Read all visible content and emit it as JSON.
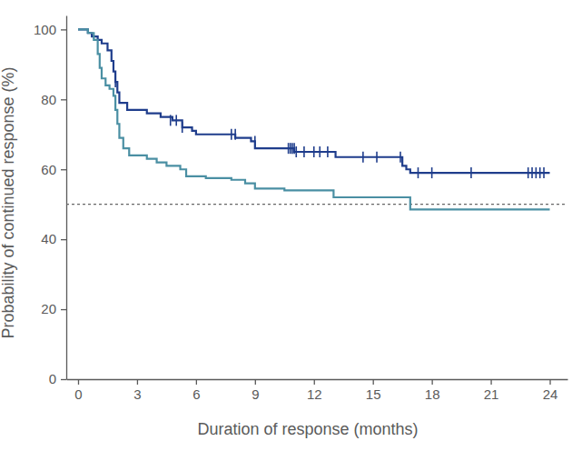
{
  "chart_data": {
    "type": "line",
    "line_style": "step",
    "x_label": "Duration of response (months)",
    "y_label": "Probability of continued response (%)",
    "xlim": [
      -0.6,
      24.9
    ],
    "ylim": [
      0,
      104
    ],
    "xticks": [
      0,
      3,
      6,
      9,
      12,
      15,
      18,
      21,
      24
    ],
    "yticks": [
      0,
      20,
      40,
      60,
      80,
      100
    ],
    "grid": false,
    "reference_line": 50,
    "series": [
      {
        "color": "#1f3d8c",
        "x": [
          0,
          0.5,
          0.7,
          1.0,
          1.2,
          1.5,
          1.7,
          1.8,
          1.9,
          2.0,
          2.1,
          2.5,
          3.5,
          4.2,
          4.8,
          5.3,
          5.8,
          6.0,
          8.0,
          8.8,
          9.0,
          11.0,
          13.1,
          16.5,
          16.7,
          16.9,
          24.0
        ],
        "values": [
          100,
          99,
          98,
          97,
          96,
          94,
          91,
          88,
          85,
          82,
          79,
          77,
          76,
          75,
          74,
          72,
          71,
          70,
          69,
          68,
          66,
          65,
          63.5,
          61,
          60,
          59,
          59
        ],
        "censor_x": [
          1.9,
          4.7,
          5.0,
          5.3,
          7.8,
          8.0,
          9.0,
          10.7,
          10.8,
          10.9,
          11.0,
          11.1,
          11.5,
          12.0,
          12.3,
          12.7,
          14.5,
          15.2,
          16.4,
          17.3,
          18.0,
          20.0,
          22.9,
          23.1,
          23.3,
          23.5,
          23.7
        ],
        "censor_values": [
          85,
          74,
          74,
          72,
          70,
          70,
          68,
          66,
          66,
          66,
          66,
          65,
          65,
          65,
          65,
          65,
          63.5,
          63.5,
          63.5,
          59,
          59,
          59,
          59,
          59,
          59,
          59,
          59
        ]
      },
      {
        "color": "#4a8fa3",
        "x": [
          0,
          0.5,
          0.8,
          1.0,
          1.1,
          1.2,
          1.4,
          1.6,
          1.8,
          1.9,
          2.0,
          2.1,
          2.3,
          2.6,
          3.5,
          4.0,
          4.5,
          5.2,
          5.5,
          6.5,
          7.8,
          8.5,
          9.0,
          10.5,
          13.0,
          16.9,
          24.0
        ],
        "values": [
          100,
          99,
          97,
          93,
          89,
          86,
          84,
          83,
          81,
          77,
          73,
          69,
          66,
          64,
          63,
          62,
          61,
          60,
          58,
          57.5,
          57,
          56,
          54.5,
          54,
          52,
          48.5,
          48.5
        ]
      }
    ]
  }
}
